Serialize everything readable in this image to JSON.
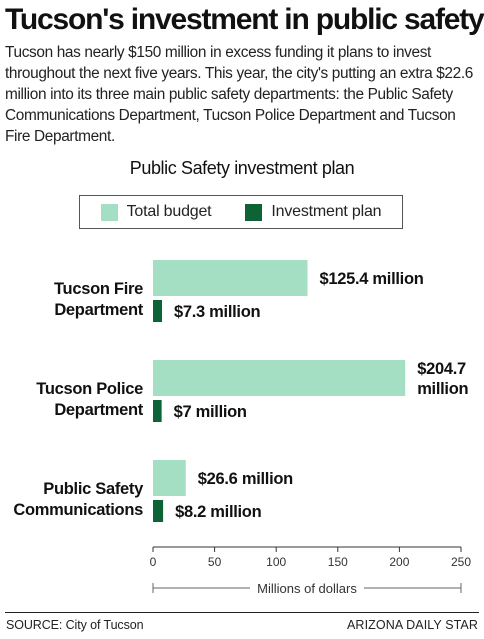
{
  "headline": "Tucson's investment in public safety",
  "intro": "Tucson has nearly $150 million in excess funding it plans to invest throughout the next five years. This year, the city's putting an extra $22.6 million into its three main public safety departments: the Public Safety Communications Department, Tucson Police Department and Tucson Fire Department.",
  "footer": {
    "source": "SOURCE: City of Tucson",
    "credit": "ARIZONA DAILY STAR"
  },
  "chart_data": {
    "type": "bar",
    "orientation": "horizontal",
    "title": "Public Safety investment plan",
    "xlabel": "Millions of dollars",
    "ylabel": "",
    "xlim": [
      0,
      250
    ],
    "xticks": [
      0,
      50,
      100,
      150,
      200,
      250
    ],
    "grid": false,
    "legend_placement": "top-center",
    "categories": [
      [
        "Tucson Fire",
        "Department"
      ],
      [
        "Tucson Police",
        "Department"
      ],
      [
        "Public Safety",
        "Communications"
      ]
    ],
    "series": [
      {
        "name": "Total budget",
        "color": "#a4dfc4",
        "values": [
          125.4,
          204.7,
          26.6
        ],
        "labels": [
          [
            "$125.4 million"
          ],
          [
            "$204.7",
            "million"
          ],
          [
            "$26.6 million"
          ]
        ]
      },
      {
        "name": "Investment plan",
        "color": "#0d6236",
        "values": [
          7.3,
          7,
          8.2
        ],
        "labels": [
          [
            "$7.3 million"
          ],
          [
            "$7 million"
          ],
          [
            "$8.2 million"
          ]
        ]
      }
    ]
  }
}
